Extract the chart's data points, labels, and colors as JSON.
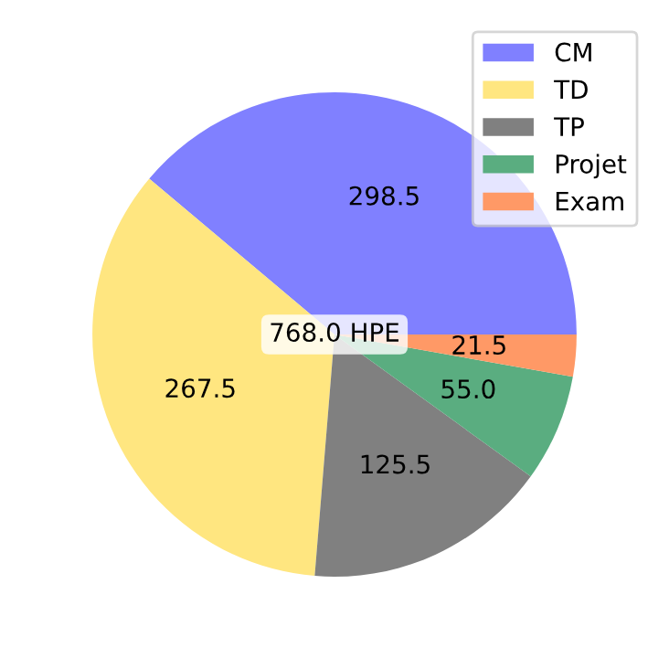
{
  "chart_data": {
    "type": "pie",
    "categories": [
      "CM",
      "TD",
      "TP",
      "Projet",
      "Exam"
    ],
    "values": [
      298.5,
      267.5,
      125.5,
      55.0,
      21.5
    ],
    "colors": [
      "#8080ff",
      "#ffe680",
      "#808080",
      "#5aad80",
      "#ff9966"
    ],
    "value_labels": [
      "298.5",
      "267.5",
      "125.5",
      "55.0",
      "21.5"
    ],
    "legend": "top right",
    "annotations": [
      "768.0 HPE"
    ]
  }
}
